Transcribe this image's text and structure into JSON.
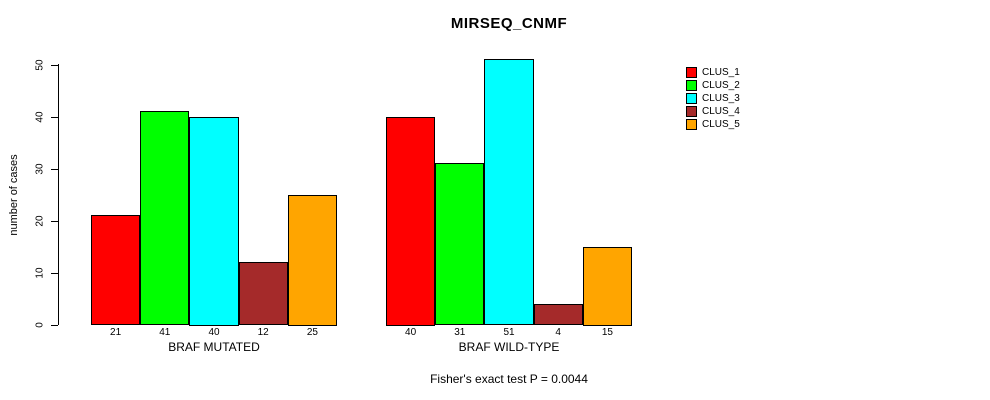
{
  "chart_data": {
    "type": "bar",
    "title": "MIRSEQ_CNMF",
    "ylabel": "number of cases",
    "xlabel": "",
    "ylim": [
      0,
      50
    ],
    "yticks": [
      0,
      10,
      20,
      30,
      40,
      50
    ],
    "categories": [
      "BRAF MUTATED",
      "BRAF WILD-TYPE"
    ],
    "series": [
      {
        "name": "CLUS_1",
        "color": "#FF0000",
        "values": [
          21,
          40
        ]
      },
      {
        "name": "CLUS_2",
        "color": "#00FF00",
        "values": [
          41,
          31
        ]
      },
      {
        "name": "CLUS_3",
        "color": "#00FFFF",
        "values": [
          40,
          51
        ]
      },
      {
        "name": "CLUS_4",
        "color": "#A52A2A",
        "values": [
          12,
          4
        ]
      },
      {
        "name": "CLUS_5",
        "color": "#FFA500",
        "values": [
          25,
          15
        ]
      }
    ],
    "bar_value_labels_shown": true,
    "legend_position": "right",
    "grid": false,
    "axis_color": "#000000",
    "background_color": "#FFFFFF",
    "annotation": "Fisher's exact test P = 0.0044"
  }
}
